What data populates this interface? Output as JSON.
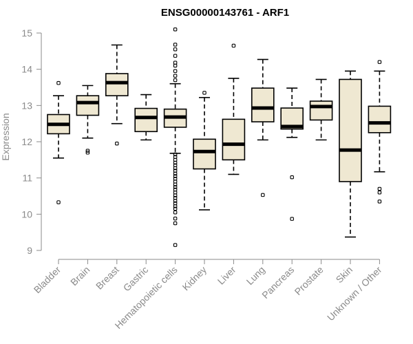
{
  "chart_data": {
    "type": "box",
    "title": "ENSG00000143761 - ARF1",
    "xlabel": "",
    "ylabel": "Expression",
    "ylim": [
      9,
      15
    ],
    "yticks": [
      9,
      10,
      11,
      12,
      13,
      14,
      15
    ],
    "box_color": "#efe8d2",
    "categories": [
      "Bladder",
      "Brain",
      "Breast",
      "Gastric",
      "Hematopoietic cells",
      "Kidney",
      "Liver",
      "Lung",
      "Pancreas",
      "Prostate",
      "Skin",
      "Unknown / Other"
    ],
    "boxes": [
      {
        "min": 11.55,
        "q1": 12.22,
        "median": 12.48,
        "q3": 12.75,
        "max": 13.27,
        "outliers": [
          10.33,
          13.62
        ]
      },
      {
        "min": 12.1,
        "q1": 12.73,
        "median": 13.08,
        "q3": 13.27,
        "max": 13.55,
        "outliers": [
          11.7,
          11.75
        ]
      },
      {
        "min": 12.5,
        "q1": 13.27,
        "median": 13.63,
        "q3": 13.88,
        "max": 14.67,
        "outliers": [
          11.95
        ]
      },
      {
        "min": 12.05,
        "q1": 12.28,
        "median": 12.67,
        "q3": 12.92,
        "max": 13.3,
        "outliers": []
      },
      {
        "min": 11.68,
        "q1": 12.4,
        "median": 12.68,
        "q3": 12.9,
        "max": 13.6,
        "outliers": [
          15.1,
          14.68,
          14.55,
          14.37,
          14.18,
          14.1,
          13.95,
          13.82,
          13.7,
          11.65,
          11.58,
          11.5,
          11.42,
          11.35,
          11.27,
          11.2,
          11.12,
          11.05,
          10.98,
          10.9,
          10.82,
          10.75,
          10.68,
          10.6,
          10.52,
          10.45,
          10.37,
          10.3,
          10.22,
          10.15,
          10.05,
          9.88,
          9.75,
          9.15
        ]
      },
      {
        "min": 10.12,
        "q1": 11.25,
        "median": 11.73,
        "q3": 12.07,
        "max": 13.22,
        "outliers": [
          13.35
        ]
      },
      {
        "min": 11.1,
        "q1": 11.5,
        "median": 11.93,
        "q3": 12.62,
        "max": 13.75,
        "outliers": [
          14.65
        ]
      },
      {
        "min": 12.05,
        "q1": 12.55,
        "median": 12.93,
        "q3": 13.48,
        "max": 14.27,
        "outliers": [
          10.53
        ]
      },
      {
        "min": 12.12,
        "q1": 12.35,
        "median": 12.42,
        "q3": 12.93,
        "max": 13.48,
        "outliers": [
          11.02,
          9.87
        ]
      },
      {
        "min": 12.05,
        "q1": 12.6,
        "median": 12.97,
        "q3": 13.12,
        "max": 13.72,
        "outliers": []
      },
      {
        "min": 9.37,
        "q1": 10.9,
        "median": 11.77,
        "q3": 13.72,
        "max": 13.95,
        "outliers": []
      },
      {
        "min": 11.17,
        "q1": 12.25,
        "median": 12.52,
        "q3": 12.98,
        "max": 13.95,
        "outliers": [
          14.2,
          10.7,
          10.6,
          10.35
        ]
      }
    ]
  }
}
